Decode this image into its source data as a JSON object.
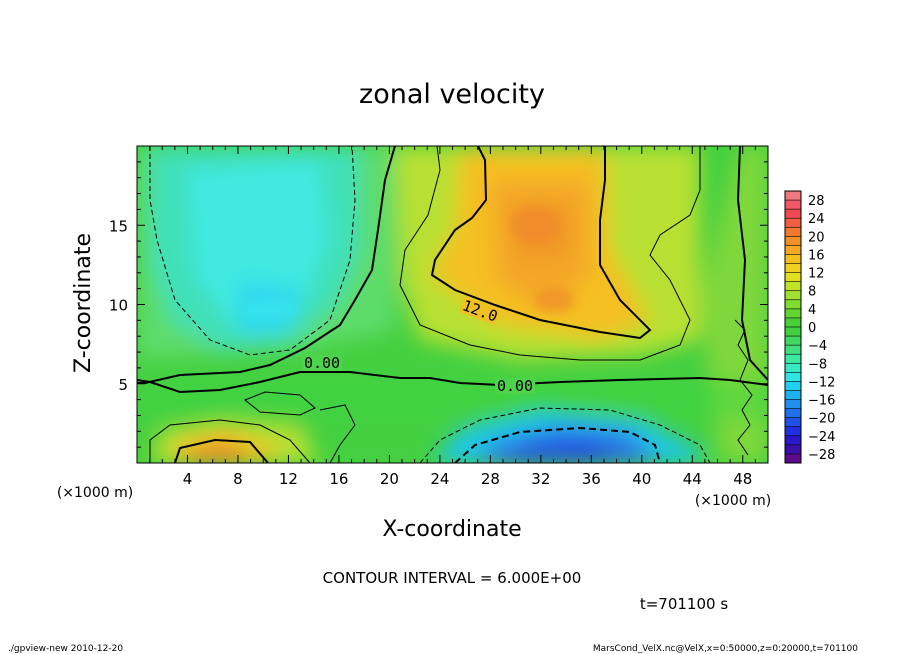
{
  "chart_data": {
    "type": "heatmap",
    "title": "zonal velocity",
    "xlabel": "X-coordinate",
    "ylabel": "Z-coordinate",
    "x_unit_label": "(×1000 m)",
    "y_unit_label": "(×1000 m)",
    "xlim": [
      0,
      50
    ],
    "ylim": [
      0,
      20
    ],
    "x_ticks": [
      4,
      8,
      12,
      16,
      20,
      24,
      28,
      32,
      36,
      40,
      44,
      48
    ],
    "y_ticks": [
      5,
      10,
      15
    ],
    "colorbar_ticks": [
      28,
      24,
      20,
      16,
      12,
      8,
      4,
      0,
      -4,
      -8,
      -12,
      -16,
      -20,
      -24,
      -28
    ],
    "colorbar_levels": [
      -30,
      -28,
      -26,
      -24,
      -22,
      -20,
      -18,
      -16,
      -14,
      -12,
      -10,
      -8,
      -6,
      -4,
      -2,
      0,
      2,
      4,
      6,
      8,
      10,
      12,
      14,
      16,
      18,
      20,
      22,
      24,
      26,
      28,
      30
    ],
    "contour_labels": [
      "12.0",
      "0.00",
      "0.00"
    ],
    "contour_interval_text": "CONTOUR INTERVAL = 6.000E+00",
    "time_text": "t=701100 s",
    "field_regions": [
      {
        "name": "negative-upper-left",
        "value": -9
      },
      {
        "name": "positive-core-upper-middle",
        "value": 17
      },
      {
        "name": "negative-jet-bottom",
        "value": -17
      },
      {
        "name": "positive-bottom-left",
        "value": 15
      }
    ]
  },
  "footer": {
    "left": "./gpview-new  2010-12-20",
    "right": "MarsCond_VelX.nc@VelX,x=0:50000,z=0:20000,t=701100"
  },
  "colors": {
    "background_field": "#3fd23f",
    "frame": "#000000"
  }
}
